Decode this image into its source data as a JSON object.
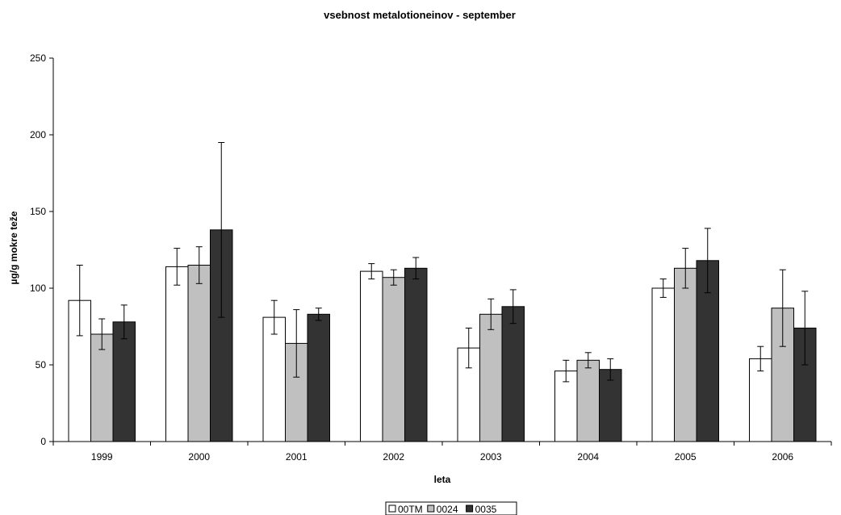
{
  "chart_data": {
    "type": "bar",
    "title": "vsebnost metalotioneinov - september",
    "xlabel": "leta",
    "ylabel": "µg/g mokre teže",
    "ylim": [
      0,
      250
    ],
    "yticks": [
      0,
      50,
      100,
      150,
      200,
      250
    ],
    "categories": [
      "1999",
      "2000",
      "2001",
      "2002",
      "2003",
      "2004",
      "2005",
      "2006"
    ],
    "series": [
      {
        "name": "00TM",
        "color": "#ffffff",
        "values": [
          92,
          114,
          81,
          111,
          61,
          46,
          100,
          54
        ],
        "error": [
          23,
          12,
          11,
          5,
          13,
          7,
          6,
          8
        ]
      },
      {
        "name": "0024",
        "color": "#c0c0c0",
        "values": [
          70,
          115,
          64,
          107,
          83,
          53,
          113,
          87
        ],
        "error": [
          10,
          12,
          22,
          5,
          10,
          5,
          13,
          25
        ]
      },
      {
        "name": "0035",
        "color": "#333333",
        "values": [
          78,
          138,
          83,
          113,
          88,
          47,
          118,
          74
        ],
        "error": [
          11,
          57,
          4,
          7,
          11,
          7,
          21,
          24
        ]
      }
    ],
    "grid": false,
    "legend_position": "bottom"
  }
}
